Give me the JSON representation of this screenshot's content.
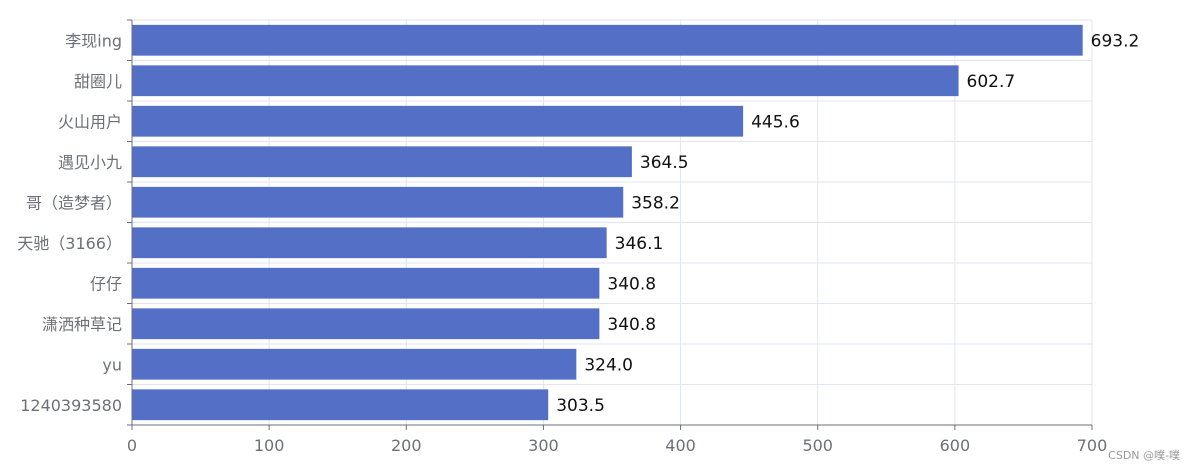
{
  "chart_data": {
    "type": "bar",
    "orientation": "horizontal",
    "categories": [
      "李现ing",
      "甜圈儿",
      "火山用户",
      "遇见小九",
      "哥（造梦者）",
      "天驰（3166）",
      "仔仔",
      "潇洒种草记",
      "yu",
      "1240393580"
    ],
    "values": [
      693.2,
      602.7,
      445.6,
      364.5,
      358.2,
      346.1,
      340.8,
      340.8,
      324.0,
      303.5
    ],
    "value_labels": [
      "693.2",
      "602.7",
      "445.6",
      "364.5",
      "358.2",
      "346.1",
      "340.8",
      "340.8",
      "324.0",
      "303.5"
    ],
    "xlim": [
      0,
      700
    ],
    "xticks": [
      0,
      100,
      200,
      300,
      400,
      500,
      600,
      700
    ],
    "grid": true,
    "bar_color": "#5470c6",
    "title": "",
    "xlabel": "",
    "ylabel": ""
  },
  "watermark": "CSDN @噗-噗"
}
